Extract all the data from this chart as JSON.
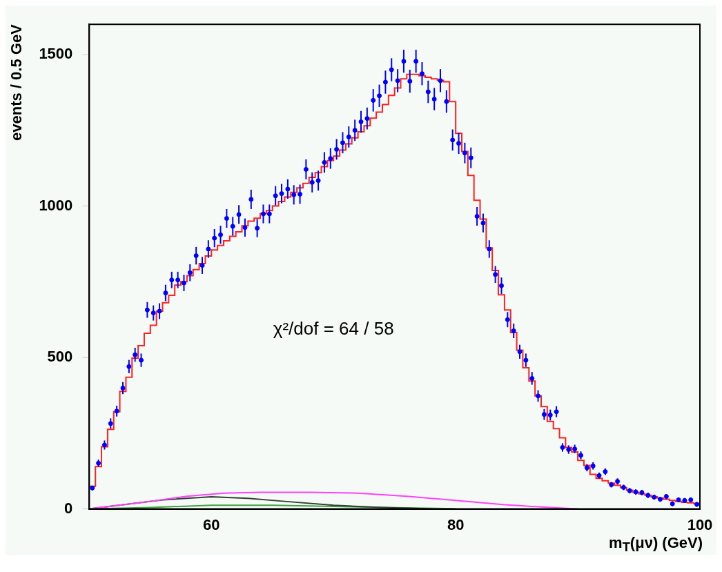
{
  "chart_data": {
    "type": "scatter",
    "xlabel": "m$_{T}$(μν) (GeV)",
    "ylabel": "events / 0.5 GeV",
    "annotations": [
      "χ²/dof = 64 / 58"
    ],
    "xlim": [
      50,
      100
    ],
    "xticks": [
      60,
      80,
      100
    ],
    "ylim": [
      0,
      1600
    ],
    "yticks": [
      0,
      500,
      1000,
      1500
    ],
    "grid": false,
    "legend": false,
    "series": [
      {
        "type": "histogram",
        "color": "#ff2020",
        "bins": [
          50,
          50.5,
          51,
          51.5,
          52,
          52.5,
          53,
          53.5,
          54,
          54.5,
          55,
          55.5,
          56,
          56.5,
          57,
          57.5,
          58,
          58.5,
          59,
          59.5,
          60,
          60.5,
          61,
          61.5,
          62,
          62.5,
          63,
          63.5,
          64,
          64.5,
          65,
          65.5,
          66,
          66.5,
          67,
          67.5,
          68,
          68.5,
          69,
          69.5,
          70,
          70.5,
          71,
          71.5,
          72,
          72.5,
          73,
          73.5,
          74,
          74.5,
          75,
          75.5,
          76,
          76.5,
          77,
          77.5,
          78,
          78.5,
          79,
          79.5,
          80,
          80.5,
          81,
          81.5,
          82,
          82.5,
          83,
          83.5,
          84,
          84.5,
          85,
          85.5,
          86,
          86.5,
          87,
          87.5,
          88,
          88.5,
          89,
          89.5,
          90,
          90.5,
          91,
          91.5,
          92,
          92.5,
          93,
          93.5,
          94,
          94.5,
          95,
          95.5,
          96,
          96.5,
          97,
          97.5,
          98,
          98.5,
          99,
          99.5,
          100
        ],
        "values": [
          75,
          140,
          205,
          263,
          321,
          388,
          435,
          498,
          539,
          580,
          606,
          653,
          681,
          705,
          739,
          750,
          770,
          790,
          810,
          835,
          855,
          870,
          885,
          900,
          915,
          935,
          950,
          960,
          975,
          985,
          1000,
          1015,
          1030,
          1045,
          1060,
          1075,
          1095,
          1110,
          1130,
          1150,
          1165,
          1185,
          1205,
          1225,
          1245,
          1265,
          1290,
          1310,
          1335,
          1365,
          1390,
          1420,
          1435,
          1435,
          1430,
          1425,
          1420,
          1415,
          1410,
          1345,
          1240,
          1180,
          1101,
          1019,
          957,
          862,
          787,
          707,
          657,
          582,
          524,
          466,
          422,
          373,
          338,
          289,
          265,
          235,
          203,
          188,
          160,
          144,
          114,
          101,
          93,
          85,
          78,
          70,
          62,
          55,
          50,
          45,
          40,
          36,
          32,
          28,
          25,
          22,
          20,
          18
        ]
      },
      {
        "type": "line",
        "color": "#ff40ff",
        "x": [
          50,
          52,
          55,
          58,
          61,
          64,
          68,
          72,
          76,
          80,
          84,
          88,
          90
        ],
        "values": [
          0,
          10,
          25,
          42,
          52,
          55,
          55,
          52,
          42,
          28,
          14,
          4,
          0
        ]
      },
      {
        "type": "line",
        "color": "#304030",
        "x": [
          50,
          53,
          56,
          60,
          63,
          66,
          70,
          74,
          78
        ],
        "values": [
          0,
          15,
          30,
          40,
          35,
          25,
          12,
          5,
          0
        ]
      },
      {
        "type": "line",
        "color": "#40a040",
        "x": [
          50,
          55,
          60,
          65,
          70,
          75,
          80
        ],
        "values": [
          0,
          5,
          12,
          12,
          8,
          4,
          1
        ]
      },
      {
        "type": "scatter",
        "color": "#0000ff",
        "marker": "circle",
        "x": [
          50.25,
          50.75,
          51.25,
          51.75,
          52.25,
          52.75,
          53.25,
          53.75,
          54.25,
          54.75,
          55.25,
          55.75,
          56.25,
          56.75,
          57.25,
          57.75,
          58.25,
          58.75,
          59.25,
          59.75,
          60.25,
          60.75,
          61.25,
          61.75,
          62.25,
          62.75,
          63.25,
          63.75,
          64.25,
          64.75,
          65.25,
          65.75,
          66.25,
          66.75,
          67.25,
          67.75,
          68.25,
          68.75,
          69.25,
          69.75,
          70.25,
          70.75,
          71.25,
          71.75,
          72.25,
          72.75,
          73.25,
          73.75,
          74.25,
          74.75,
          75.25,
          75.75,
          76.25,
          76.75,
          77.25,
          77.75,
          78.25,
          78.75,
          79.25,
          79.75,
          80.25,
          80.75,
          81.25,
          81.75,
          82.25,
          82.75,
          83.25,
          83.75,
          84.25,
          84.75,
          85.25,
          85.75,
          86.25,
          86.75,
          87.25,
          87.75,
          88.25,
          88.75,
          89.25,
          89.75,
          90.25,
          90.75,
          91.25,
          91.75,
          92.25,
          92.75,
          93.25,
          93.75,
          94.25,
          94.75,
          95.25,
          95.75,
          96.25,
          96.75,
          97.25,
          97.75,
          98.25,
          98.75,
          99.25,
          99.75
        ],
        "values": [
          69,
          151,
          211,
          282,
          323,
          399,
          470,
          509,
          491,
          657,
          647,
          653,
          713,
          756,
          756,
          746,
          780,
          836,
          804,
          858,
          894,
          905,
          959,
          933,
          972,
          929,
          1022,
          927,
          974,
          974,
          1034,
          1041,
          1056,
          1037,
          1039,
          1121,
          1078,
          1084,
          1144,
          1157,
          1187,
          1209,
          1228,
          1250,
          1278,
          1289,
          1349,
          1364,
          1409,
          1450,
          1414,
          1478,
          1412,
          1478,
          1437,
          1377,
          1353,
          1414,
          1345,
          1218,
          1207,
          1175,
          1159,
          966,
          944,
          858,
          774,
          737,
          625,
          588,
          519,
          491,
          431,
          373,
          312,
          310,
          321,
          203,
          196,
          198,
          177,
          136,
          142,
          110,
          123,
          80,
          91,
          71,
          60,
          56,
          54,
          45,
          39,
          32,
          41,
          17,
          30,
          28,
          30,
          15
        ],
        "errors": [
          8,
          12,
          15,
          17,
          18,
          20,
          22,
          23,
          22,
          26,
          25,
          26,
          27,
          27,
          27,
          27,
          28,
          29,
          28,
          29,
          30,
          30,
          31,
          31,
          31,
          30,
          32,
          30,
          31,
          31,
          32,
          32,
          32,
          32,
          32,
          33,
          33,
          33,
          34,
          34,
          34,
          35,
          35,
          35,
          36,
          36,
          37,
          37,
          38,
          38,
          38,
          38,
          38,
          38,
          38,
          37,
          37,
          38,
          37,
          35,
          35,
          34,
          34,
          31,
          31,
          29,
          28,
          27,
          25,
          24,
          23,
          22,
          21,
          19,
          18,
          18,
          18,
          14,
          14,
          14,
          13,
          12,
          12,
          10,
          11,
          9,
          10,
          9,
          9,
          9,
          9,
          9,
          8,
          8,
          8,
          8,
          8,
          8,
          8,
          8
        ]
      }
    ]
  }
}
